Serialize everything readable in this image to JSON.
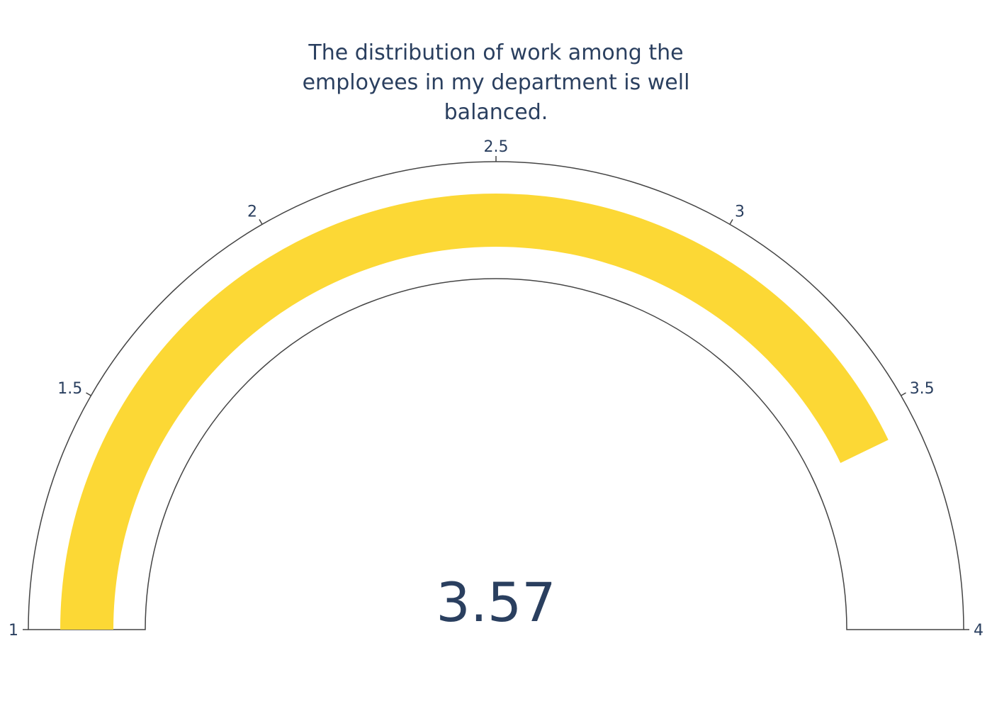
{
  "chart_data": {
    "type": "gauge",
    "title": "The distribution of work among the employees in my department is well balanced.",
    "value": 3.57,
    "value_text": "3.57",
    "range": [
      1,
      4
    ],
    "ticks": [
      1,
      1.5,
      2,
      2.5,
      3,
      3.5,
      4
    ],
    "tick_labels": [
      "1",
      "1.5",
      "2",
      "2.5",
      "3",
      "3.5",
      "4"
    ],
    "bar_color": "#fcd835",
    "outline_color": "#444444",
    "text_color": "#2a3f5f"
  }
}
